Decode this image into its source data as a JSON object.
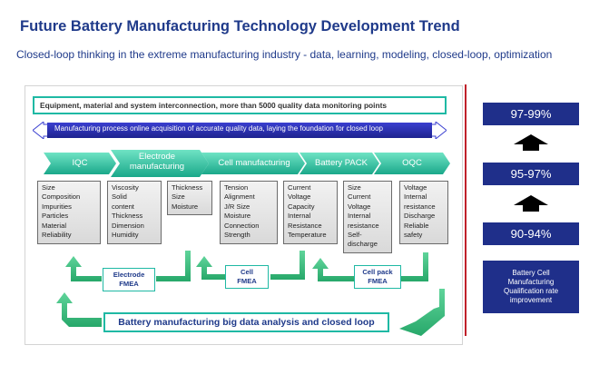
{
  "title": "Future Battery Manufacturing Technology Development Trend",
  "subtitle": "Closed-loop thinking in the extreme manufacturing industry - data, learning, modeling, closed-loop, optimization",
  "banner_top": "Equipment, material and system interconnection, more than 5000 quality data monitoring points",
  "banner_arrow": "Manufacturing process online acquisition of accurate quality data, laying the foundation for closed loop",
  "stages": [
    {
      "label": "IQC"
    },
    {
      "label": "Electrode manufacturing"
    },
    {
      "label": "Cell manufacturing"
    },
    {
      "label": "Battery PACK"
    },
    {
      "label": "OQC"
    }
  ],
  "params": [
    {
      "lines": [
        "Size",
        "Composition",
        "Impurities",
        "Particles",
        "Material",
        "Reliability"
      ]
    },
    {
      "lines": [
        "Viscosity",
        "Solid",
        "content",
        "Thickness",
        "Dimension",
        "Humidity"
      ]
    },
    {
      "lines": [
        "Thickness",
        "Size",
        "Moisture"
      ]
    },
    {
      "lines": [
        "Tension",
        "Alignment",
        "J/R Size",
        "Moisture",
        "Connection",
        "Strength"
      ]
    },
    {
      "lines": [
        "Current",
        "Voltage",
        "Capacity",
        "Internal",
        "Resistance",
        "Temperature"
      ]
    },
    {
      "lines": [
        "Size",
        "Current",
        "Voltage",
        "Internal",
        "resistance",
        "Self-",
        "discharge"
      ]
    },
    {
      "lines": [
        "Voltage",
        "Internal",
        "resistance",
        "Discharge",
        "Reliable",
        "safety"
      ]
    }
  ],
  "fmea": [
    {
      "lines": [
        "Electrode",
        "FMEA"
      ]
    },
    {
      "lines": [
        "Cell",
        "FMEA"
      ]
    },
    {
      "lines": [
        "Cell pack",
        "FMEA"
      ]
    }
  ],
  "bigdata": "Battery manufacturing big data analysis and closed loop",
  "rates": [
    "97-99%",
    "95-97%",
    "90-94%"
  ],
  "qualification": [
    "Battery Cell",
    "Manufacturing",
    "Qualification rate",
    "improvement"
  ],
  "colors": {
    "title": "#1f3a8a",
    "teal": "#1fb9a4",
    "navy": "#1f2f8a",
    "green": "#35b87a",
    "red": "#c0202a"
  }
}
